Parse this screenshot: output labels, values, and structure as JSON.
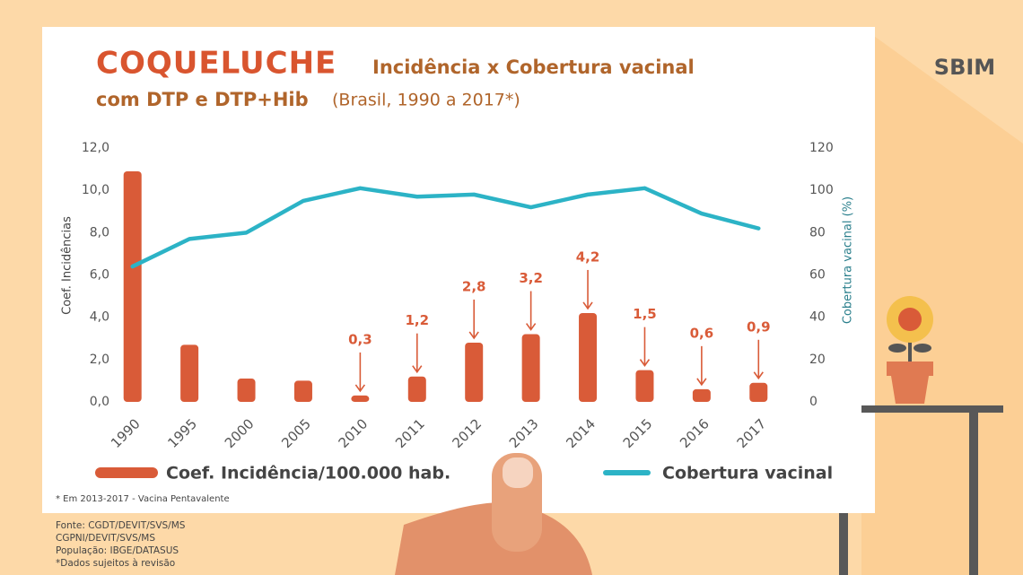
{
  "chart_data": {
    "type": "bar",
    "title": "COQUELUCHE",
    "subtitle": "Incidência x Cobertura vacinal",
    "subtitle2": "com DTP e DTP+Hib",
    "subtitle_note": "(Brasil, 1990 a 2017*)",
    "ylabel": "Coef. Incidências",
    "y2label": "Cobertura vacinal (%)",
    "categories": [
      "1990",
      "1995",
      "2000",
      "2005",
      "2010",
      "2011",
      "2012",
      "2013",
      "2014",
      "2015",
      "2016",
      "2017"
    ],
    "series": [
      {
        "name": "Coef. Incidência/100.000 hab.",
        "color": "#d95b38",
        "values": [
          10.9,
          2.7,
          1.1,
          1.0,
          0.3,
          1.2,
          2.8,
          3.2,
          4.2,
          1.5,
          0.6,
          0.9
        ],
        "value_labels": [
          null,
          null,
          null,
          null,
          "0,3",
          "1,2",
          "2,8",
          "3,2",
          "4,2",
          "1,5",
          "0,6",
          "0,9"
        ]
      },
      {
        "name": "Cobertura vacinal",
        "color": "#2cb3c6",
        "type": "line",
        "axis": "y2",
        "values": [
          64,
          77,
          80,
          95,
          101,
          97,
          98,
          92,
          98,
          101,
          89,
          82
        ]
      }
    ],
    "ylim": [
      0,
      12
    ],
    "yticks": [
      {
        "value": 0,
        "label": "0,0"
      },
      {
        "value": 2,
        "label": "2,0"
      },
      {
        "value": 4,
        "label": "4,0"
      },
      {
        "value": 6,
        "label": "6,0"
      },
      {
        "value": 8,
        "label": "8,0"
      },
      {
        "value": 10,
        "label": "10,0"
      },
      {
        "value": 12,
        "label": "12,0"
      }
    ],
    "y2lim": [
      0,
      120
    ],
    "y2ticks": [
      0,
      20,
      40,
      60,
      80,
      100,
      120
    ]
  },
  "logo": "SBIM",
  "footnote": "* Em 2013-2017 - Vacina Pentavalente",
  "sources": [
    "Fonte: CGDT/DEVIT/SVS/MS",
    "CGPNI/DEVIT/SVS/MS",
    "População: IBGE/DATASUS",
    "*Dados sujeitos à revisão"
  ]
}
